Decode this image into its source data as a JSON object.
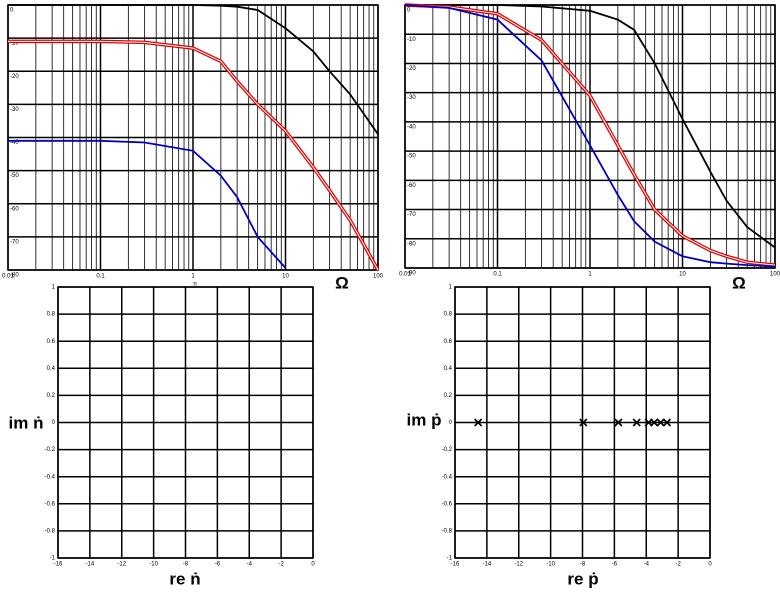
{
  "chart_data": [
    {
      "type": "line",
      "log_x": true,
      "grid": true,
      "minor_grid": true,
      "xlabel": "Ω",
      "annotation": "n",
      "x": [
        0.01,
        0.03,
        0.1,
        0.3,
        1,
        2,
        3,
        5,
        10,
        20,
        30,
        50,
        100
      ],
      "xlim": [
        0.01,
        100
      ],
      "xticks": [
        0.01,
        0.1,
        1,
        10,
        100
      ],
      "ylim": [
        -80,
        0
      ],
      "yticks": [
        0,
        -10,
        -20,
        -30,
        -40,
        -50,
        -60,
        -70,
        -80
      ],
      "series": [
        {
          "color": "#000000",
          "values": [
            0,
            0,
            0,
            0,
            0,
            -0.2,
            -0.5,
            -1.5,
            -7,
            -14,
            -20,
            -27,
            -39
          ]
        },
        {
          "color": "#e00000",
          "values": [
            -11,
            -11,
            -11,
            -11.3,
            -13,
            -17,
            -23,
            -30,
            -38,
            -49,
            -56,
            -65,
            -80
          ]
        },
        {
          "color": "#0000c0",
          "values": [
            -41,
            -41,
            -41,
            -41.5,
            -44,
            -51.5,
            -58,
            -70,
            -79.4,
            null,
            null,
            null,
            null
          ]
        }
      ]
    },
    {
      "type": "line",
      "log_x": true,
      "grid": true,
      "minor_grid": true,
      "xlabel": "Ω",
      "x": [
        0.01,
        0.03,
        0.1,
        0.3,
        1,
        2,
        3,
        5,
        10,
        20,
        30,
        50,
        100
      ],
      "xlim": [
        0.01,
        100
      ],
      "xticks": [
        0.01,
        0.1,
        1,
        10,
        100
      ],
      "ylim": [
        -90,
        0
      ],
      "yticks": [
        0,
        -10,
        -20,
        -30,
        -40,
        -50,
        -60,
        -70,
        -80,
        -90
      ],
      "series": [
        {
          "color": "#000000",
          "values": [
            0,
            0,
            0,
            -0.5,
            -2,
            -5,
            -8.5,
            -20,
            -39,
            -57,
            -67,
            -76,
            -83
          ]
        },
        {
          "color": "#e00000",
          "values": [
            0,
            -0.7,
            -3,
            -12,
            -31,
            -48,
            -58,
            -70,
            -79,
            -84,
            -86,
            -88,
            -89
          ]
        },
        {
          "color": "#0000c0",
          "values": [
            0,
            -1,
            -5,
            -19,
            -48,
            -65,
            -74,
            -81,
            -86,
            -88,
            -88.5,
            -89,
            -89.5
          ]
        }
      ]
    },
    {
      "type": "scatter",
      "grid": true,
      "xlabel": "re ṅ",
      "ylabel": "im ṅ",
      "xlim": [
        -16,
        0
      ],
      "xticks": [
        -16,
        -14,
        -12,
        -10,
        -8,
        -6,
        -4,
        -2,
        0
      ],
      "ylim": [
        -1,
        1
      ],
      "yticks": [
        1,
        0.8,
        0.6,
        0.4,
        0.2,
        0,
        -0.2,
        -0.4,
        -0.6,
        -0.8,
        -1
      ],
      "x": [],
      "values": []
    },
    {
      "type": "scatter",
      "grid": true,
      "xlabel": "re ṗ",
      "ylabel": "im ṗ",
      "color": "#000000",
      "xlim": [
        -16,
        0
      ],
      "xticks": [
        -16,
        -14,
        -12,
        -10,
        -8,
        -6,
        -4,
        -2,
        0
      ],
      "ylim": [
        -1,
        1
      ],
      "yticks": [
        1,
        0.8,
        0.6,
        0.4,
        0.2,
        0,
        -0.2,
        -0.4,
        -0.6,
        -0.8,
        -1
      ],
      "x": [
        -14.55,
        -7.95,
        -5.75,
        -4.6,
        -3.85,
        -3.5,
        -3.1,
        -2.7
      ],
      "values": [
        0,
        0,
        0,
        0,
        0,
        0,
        0,
        0
      ]
    }
  ]
}
